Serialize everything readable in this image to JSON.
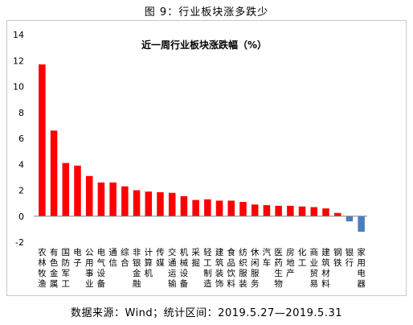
{
  "figure": {
    "title": "图 9：行业板块涨多跌少",
    "source": "数据来源：Wind；统计区间：2019.5.27—2019.5.31"
  },
  "colors": {
    "positive": "#ff0000",
    "negative": "#4a7ebb",
    "axis": "#808080"
  },
  "chart_data": {
    "type": "bar",
    "title": "近一周行业板块涨跌幅（%）",
    "xlabel": "",
    "ylabel": "",
    "ylim": [
      -2,
      14
    ],
    "yticks": [
      -2,
      0,
      2,
      4,
      6,
      8,
      10,
      12,
      14
    ],
    "grid": false,
    "categories": [
      "农林牧渔",
      "有色金属",
      "国防军工",
      "电子",
      "公用事业",
      "电气设备",
      "通信",
      "综合",
      "非银金融",
      "计算机",
      "传媒",
      "交通运输",
      "机械设备",
      "采掘",
      "轻工制造",
      "建筑装饰",
      "食品饮料",
      "纺织服装",
      "休闲服务",
      "汽车",
      "医药生物",
      "房地产",
      "化工",
      "商业贸易",
      "建筑材料",
      "钢铁",
      "银行",
      "家用电器"
    ],
    "values": [
      11.7,
      6.6,
      4.1,
      3.9,
      3.1,
      2.6,
      2.6,
      2.3,
      2.0,
      1.9,
      1.85,
      1.8,
      1.55,
      1.25,
      1.3,
      1.2,
      1.2,
      1.1,
      0.9,
      0.85,
      0.8,
      0.8,
      0.75,
      0.7,
      0.6,
      0.25,
      -0.4,
      -1.2
    ]
  }
}
